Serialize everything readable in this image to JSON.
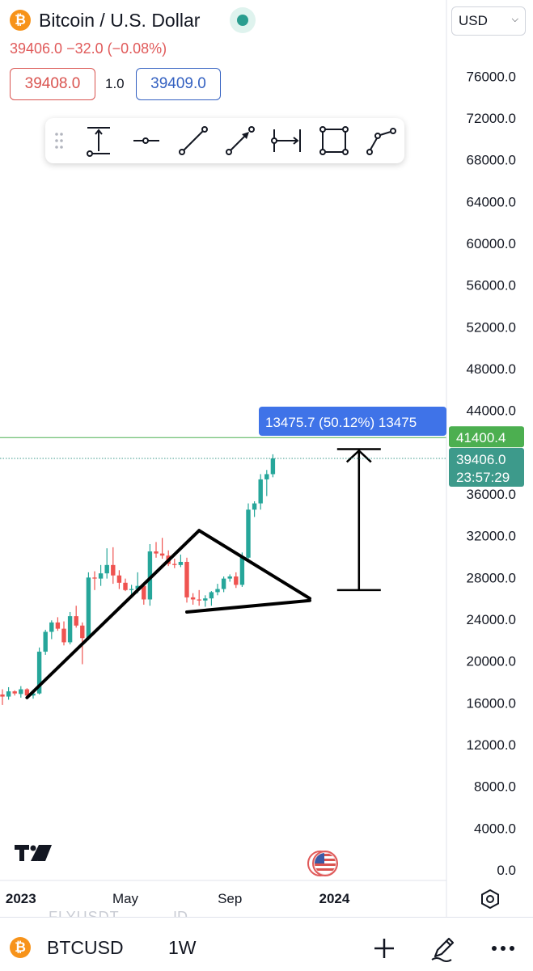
{
  "header": {
    "symbol_icon": "bitcoin-icon",
    "title": "Bitcoin / U.S. Dollar",
    "quote": "39406.0 −32.0 (−0.08%)",
    "sell_price": "39408.0",
    "spread": "1.0",
    "buy_price": "39409.0",
    "currency": "USD"
  },
  "toolbar": {
    "tools": [
      "price-range-icon",
      "horizontal-ray-icon",
      "trend-line-icon",
      "arrow-icon",
      "date-range-icon",
      "rectangle-icon",
      "path-icon"
    ]
  },
  "overlays": {
    "measure_label": "13475.7 (50.12%) 13475",
    "level_label": "41400.4",
    "last_price_label": "39406.0",
    "countdown_label": "23:57:29"
  },
  "bottom_bar": {
    "symbol": "BTCUSD",
    "interval": "1W",
    "ghost_left": "FLYUSDT",
    "ghost_right": "ID"
  },
  "colors": {
    "up": "#26a69a",
    "down": "#ef5350",
    "measure_label_bg": "#3f73e8",
    "level_line": "#4caf50",
    "last_price_bg": "#3d9a8b",
    "accent_orange": "#f7931a"
  },
  "chart_data": {
    "type": "candlestick",
    "title": "",
    "xlabel": "",
    "ylabel": "",
    "ylim": [
      0,
      78000
    ],
    "y_ticks": [
      0,
      4000,
      8000,
      12000,
      16000,
      20000,
      24000,
      28000,
      32000,
      36000,
      40000,
      44000,
      48000,
      52000,
      56000,
      60000,
      64000,
      68000,
      72000,
      76000
    ],
    "y_tick_labels": [
      "0.0",
      "4000.0",
      "8000.0",
      "12000.0",
      "16000.0",
      "20000.0",
      "24000.0",
      "28000.0",
      "32000.0",
      "36000.0",
      "40000.0",
      "44000.0",
      "48000.0",
      "52000.0",
      "56000.0",
      "60000.0",
      "64000.0",
      "68000.0",
      "72000.0",
      "76000.0"
    ],
    "x_tick_labels": [
      {
        "label": "2023",
        "week": 3,
        "bold": true
      },
      {
        "label": "May",
        "week": 20,
        "bold": false
      },
      {
        "label": "Sep",
        "week": 37,
        "bold": false
      },
      {
        "label": "2024",
        "week": 54,
        "bold": true
      }
    ],
    "week_start_x": 3,
    "week_spacing_x": 7.6,
    "candles": [
      {
        "o": 16800,
        "h": 17300,
        "l": 15800,
        "c": 16600
      },
      {
        "o": 16600,
        "h": 17500,
        "l": 16300,
        "c": 17100
      },
      {
        "o": 17100,
        "h": 17200,
        "l": 16700,
        "c": 16900
      },
      {
        "o": 16850,
        "h": 17600,
        "l": 16500,
        "c": 17300
      },
      {
        "o": 17300,
        "h": 17400,
        "l": 16600,
        "c": 16700
      },
      {
        "o": 16700,
        "h": 17000,
        "l": 16400,
        "c": 16900
      },
      {
        "o": 16900,
        "h": 21300,
        "l": 16800,
        "c": 20900
      },
      {
        "o": 20900,
        "h": 23000,
        "l": 20600,
        "c": 22800
      },
      {
        "o": 22800,
        "h": 23900,
        "l": 22100,
        "c": 23700
      },
      {
        "o": 23700,
        "h": 24200,
        "l": 22900,
        "c": 23100
      },
      {
        "o": 23100,
        "h": 23800,
        "l": 21500,
        "c": 21800
      },
      {
        "o": 21800,
        "h": 24700,
        "l": 21600,
        "c": 24300
      },
      {
        "o": 24300,
        "h": 25300,
        "l": 23200,
        "c": 23400
      },
      {
        "o": 23400,
        "h": 23700,
        "l": 19700,
        "c": 22200
      },
      {
        "o": 22200,
        "h": 28500,
        "l": 22000,
        "c": 28000
      },
      {
        "o": 28000,
        "h": 28600,
        "l": 26800,
        "c": 27900
      },
      {
        "o": 27900,
        "h": 29200,
        "l": 27200,
        "c": 28400
      },
      {
        "o": 28400,
        "h": 30800,
        "l": 27900,
        "c": 29200
      },
      {
        "o": 29200,
        "h": 30900,
        "l": 27400,
        "c": 28200
      },
      {
        "o": 28200,
        "h": 28700,
        "l": 26900,
        "c": 27500
      },
      {
        "o": 27500,
        "h": 27900,
        "l": 26700,
        "c": 26800
      },
      {
        "o": 26800,
        "h": 27300,
        "l": 26200,
        "c": 26900
      },
      {
        "o": 26900,
        "h": 28500,
        "l": 26500,
        "c": 27200
      },
      {
        "o": 27200,
        "h": 27500,
        "l": 25400,
        "c": 25900
      },
      {
        "o": 25900,
        "h": 31200,
        "l": 25300,
        "c": 30500
      },
      {
        "o": 30500,
        "h": 31400,
        "l": 29900,
        "c": 30300
      },
      {
        "o": 30300,
        "h": 31800,
        "l": 29800,
        "c": 30100
      },
      {
        "o": 30100,
        "h": 30600,
        "l": 29100,
        "c": 29300
      },
      {
        "o": 29300,
        "h": 29800,
        "l": 28900,
        "c": 29200
      },
      {
        "o": 29200,
        "h": 30200,
        "l": 29000,
        "c": 29500
      },
      {
        "o": 29500,
        "h": 29900,
        "l": 25600,
        "c": 26100
      },
      {
        "o": 26100,
        "h": 26500,
        "l": 25400,
        "c": 25900
      },
      {
        "o": 25900,
        "h": 26800,
        "l": 25300,
        "c": 25800
      },
      {
        "o": 25800,
        "h": 26300,
        "l": 25200,
        "c": 26000
      },
      {
        "o": 26000,
        "h": 26700,
        "l": 25300,
        "c": 26600
      },
      {
        "o": 26600,
        "h": 27400,
        "l": 26300,
        "c": 26900
      },
      {
        "o": 26900,
        "h": 28100,
        "l": 26600,
        "c": 27900
      },
      {
        "o": 27900,
        "h": 28300,
        "l": 27600,
        "c": 28100
      },
      {
        "o": 28100,
        "h": 28500,
        "l": 27000,
        "c": 27300
      },
      {
        "o": 27300,
        "h": 30400,
        "l": 27100,
        "c": 29900
      },
      {
        "o": 29900,
        "h": 35100,
        "l": 29700,
        "c": 34500
      },
      {
        "o": 34500,
        "h": 35300,
        "l": 33800,
        "c": 35100
      },
      {
        "o": 35100,
        "h": 37900,
        "l": 34500,
        "c": 37400
      },
      {
        "o": 37400,
        "h": 38300,
        "l": 35800,
        "c": 37900
      },
      {
        "o": 37900,
        "h": 39800,
        "l": 37600,
        "c": 39406
      }
    ],
    "drawings": [
      {
        "kind": "trend-line",
        "from": [
          4,
          16500
        ],
        "to": [
          32,
          32500
        ]
      },
      {
        "kind": "trend-line",
        "from": [
          32,
          32500
        ],
        "to": [
          50,
          26000
        ]
      },
      {
        "kind": "trend-line",
        "from": [
          30,
          24700
        ],
        "to": [
          50,
          25800
        ]
      },
      {
        "kind": "price-range",
        "week": 58,
        "from": 26800,
        "to": 40300
      }
    ],
    "level_price": 41400.4,
    "last_price": 39406.0
  }
}
